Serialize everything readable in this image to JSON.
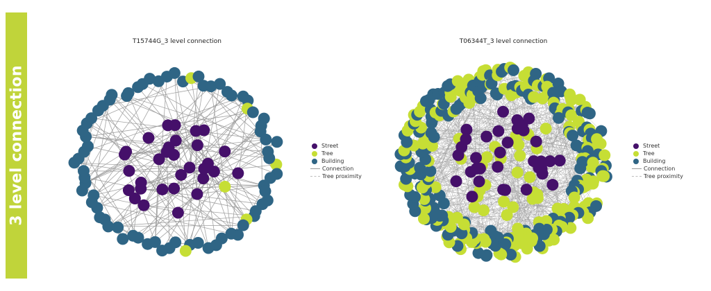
{
  "sidebar": {
    "label": "3 level connection"
  },
  "colors": {
    "street": "#45106a",
    "tree": "#c6de35",
    "building": "#2f6585",
    "connection": "#9a9a9a",
    "tree_proximity": "#cfcfcf",
    "sidebar": "#c0d43a"
  },
  "legend": {
    "street": "Street",
    "tree": "Tree",
    "building": "Building",
    "connection": "Connection",
    "tree_proximity": "Tree proximity"
  },
  "graphs": [
    {
      "title": "T15744G_3 level connection",
      "node_counts": {
        "street": 31,
        "tree": 6,
        "building": 72
      }
    },
    {
      "title": "T06344T_3 level connection",
      "node_counts": {
        "street": 34,
        "tree": 190,
        "building": 150
      }
    }
  ]
}
